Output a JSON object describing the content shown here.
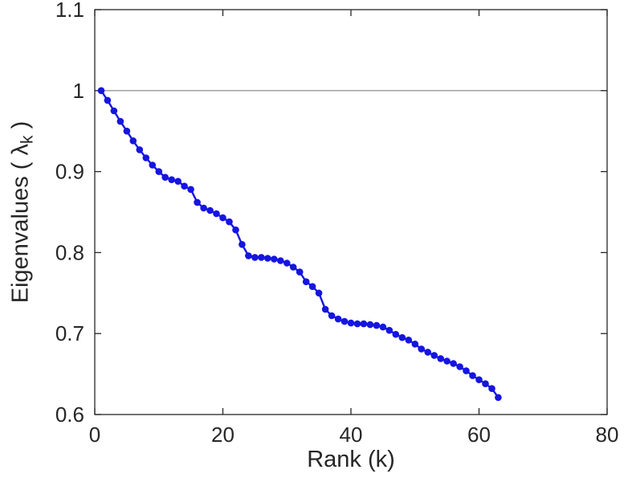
{
  "colors": {
    "background": "#ffffff",
    "axis": "#262626",
    "series": "#1515e0",
    "reference_line": "#808080"
  },
  "chart_data": {
    "type": "line",
    "title": "",
    "xlabel": "Rank (k)",
    "ylabel": "Eigenvalues ( λk )",
    "ylabel_parts": {
      "prefix": "Eigenvalues ( λ",
      "subscript": "k",
      "suffix": " )"
    },
    "xlim": [
      0,
      80
    ],
    "ylim": [
      0.6,
      1.1
    ],
    "xticks": [
      0,
      20,
      40,
      60,
      80
    ],
    "xticklabels": [
      "0",
      "20",
      "40",
      "60",
      "80"
    ],
    "yticks": [
      0.6,
      0.7,
      0.8,
      0.9,
      1.0,
      1.1
    ],
    "yticklabels": [
      "0.6",
      "0.7",
      "0.8",
      "0.9",
      "1",
      "1.1"
    ],
    "grid": false,
    "legend": null,
    "reference_line_y": 1.0,
    "series": [
      {
        "name": "eigenvalues",
        "marker": "circle",
        "x": [
          1,
          2,
          3,
          4,
          5,
          6,
          7,
          8,
          9,
          10,
          11,
          12,
          13,
          14,
          15,
          16,
          17,
          18,
          19,
          20,
          21,
          22,
          23,
          24,
          25,
          26,
          27,
          28,
          29,
          30,
          31,
          32,
          33,
          34,
          35,
          36,
          37,
          38,
          39,
          40,
          41,
          42,
          43,
          44,
          45,
          46,
          47,
          48,
          49,
          50,
          51,
          52,
          53,
          54,
          55,
          56,
          57,
          58,
          59,
          60,
          61,
          62,
          63
        ],
        "y": [
          1.0,
          0.988,
          0.975,
          0.962,
          0.95,
          0.938,
          0.927,
          0.917,
          0.908,
          0.9,
          0.893,
          0.89,
          0.888,
          0.882,
          0.878,
          0.862,
          0.855,
          0.852,
          0.848,
          0.843,
          0.838,
          0.828,
          0.81,
          0.796,
          0.794,
          0.794,
          0.793,
          0.792,
          0.79,
          0.787,
          0.782,
          0.776,
          0.764,
          0.758,
          0.75,
          0.73,
          0.722,
          0.718,
          0.715,
          0.713,
          0.712,
          0.712,
          0.711,
          0.71,
          0.708,
          0.704,
          0.699,
          0.695,
          0.692,
          0.687,
          0.681,
          0.677,
          0.673,
          0.669,
          0.666,
          0.663,
          0.659,
          0.654,
          0.648,
          0.643,
          0.638,
          0.632,
          0.621
        ]
      }
    ]
  }
}
